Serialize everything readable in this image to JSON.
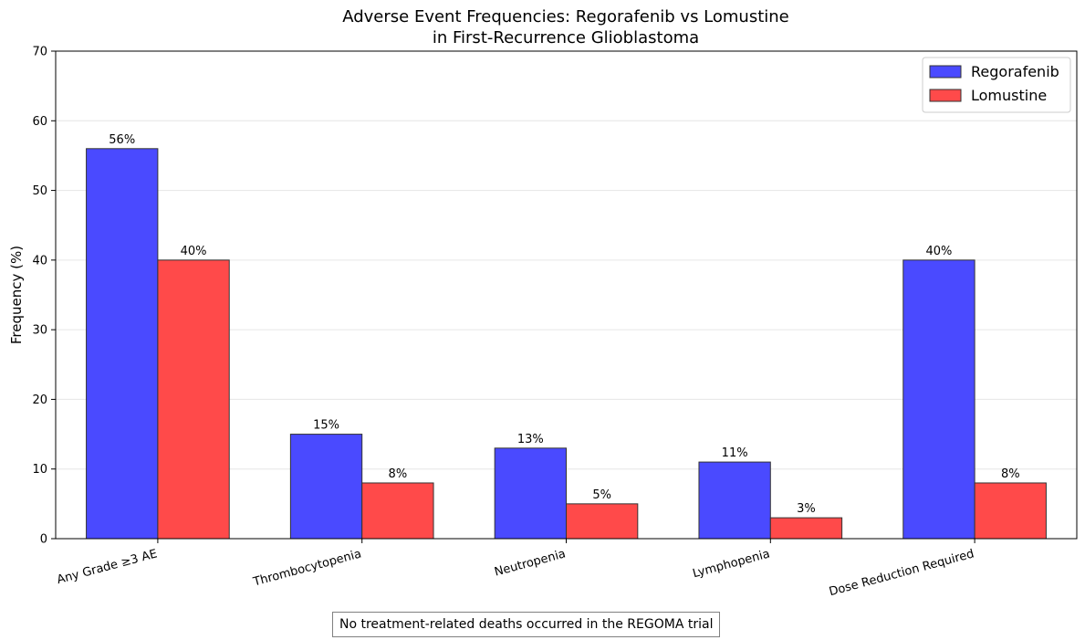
{
  "chart_data": {
    "type": "bar",
    "title": "Adverse Event Frequencies: Regorafenib vs Lomustine\nin First-Recurrence Glioblastoma",
    "title_lines": [
      "Adverse Event Frequencies: Regorafenib vs Lomustine",
      "in First-Recurrence Glioblastoma"
    ],
    "xlabel": "",
    "ylabel": "Frequency (%)",
    "categories": [
      "Any Grade ≥3 AE",
      "Thrombocytopenia",
      "Neutropenia",
      "Lymphopenia",
      "Dose Reduction Required"
    ],
    "series": [
      {
        "name": "Regorafenib",
        "color": "#4a4aff",
        "values": [
          56,
          15,
          13,
          11,
          40
        ]
      },
      {
        "name": "Lomustine",
        "color": "#ff4a4a",
        "values": [
          40,
          8,
          5,
          3,
          8
        ]
      }
    ],
    "value_label_suffix": "%",
    "ylim": [
      0,
      70
    ],
    "yticks": [
      0,
      10,
      20,
      30,
      40,
      50,
      60,
      70
    ],
    "grid": "y",
    "legend_position": "top-right"
  },
  "note": "No treatment-related deaths occurred in the REGOMA trial"
}
